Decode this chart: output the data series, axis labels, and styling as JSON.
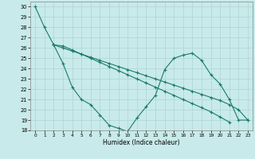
{
  "xlabel": "Humidex (Indice chaleur)",
  "bg_color": "#c8eaea",
  "grid_color": "#aed4d4",
  "line_color": "#1a7a6e",
  "xlim": [
    -0.5,
    23.5
  ],
  "ylim": [
    18,
    30.5
  ],
  "xticks": [
    0,
    1,
    2,
    3,
    4,
    5,
    6,
    7,
    8,
    9,
    10,
    11,
    12,
    13,
    14,
    15,
    16,
    17,
    18,
    19,
    20,
    21,
    22,
    23
  ],
  "yticks": [
    18,
    19,
    20,
    21,
    22,
    23,
    24,
    25,
    26,
    27,
    28,
    29,
    30
  ],
  "line1_x": [
    0,
    1,
    2,
    3,
    4,
    5,
    6,
    7,
    8,
    9,
    10,
    11,
    12,
    13,
    14,
    15,
    16,
    17,
    18,
    19,
    20,
    21
  ],
  "line1_y": [
    30,
    28,
    26.3,
    26.2,
    25.8,
    25.4,
    25.0,
    24.6,
    24.2,
    23.8,
    23.4,
    23.0,
    22.6,
    22.2,
    21.8,
    21.4,
    21.0,
    20.6,
    20.2,
    19.8,
    19.3,
    18.8
  ],
  "line2_x": [
    2,
    3,
    4,
    5,
    6,
    7,
    8,
    9,
    10,
    11,
    12,
    13,
    14,
    15,
    16,
    17,
    18,
    19,
    20,
    21,
    22,
    23
  ],
  "line2_y": [
    26.3,
    26.0,
    25.7,
    25.4,
    25.1,
    24.8,
    24.5,
    24.2,
    23.9,
    23.6,
    23.3,
    23.0,
    22.7,
    22.4,
    22.1,
    21.8,
    21.5,
    21.2,
    20.9,
    20.5,
    20.0,
    19.0
  ],
  "line3_x": [
    2,
    3,
    4,
    5,
    6,
    7,
    8,
    9,
    10,
    11,
    12,
    13,
    14,
    15,
    16,
    17,
    18,
    19,
    20,
    21,
    22,
    23
  ],
  "line3_y": [
    26.3,
    24.5,
    22.2,
    21.0,
    20.5,
    19.5,
    18.5,
    18.2,
    17.9,
    19.2,
    20.3,
    21.4,
    23.9,
    25.0,
    25.3,
    25.5,
    24.8,
    23.4,
    22.5,
    21.0,
    19.0,
    19.0
  ]
}
